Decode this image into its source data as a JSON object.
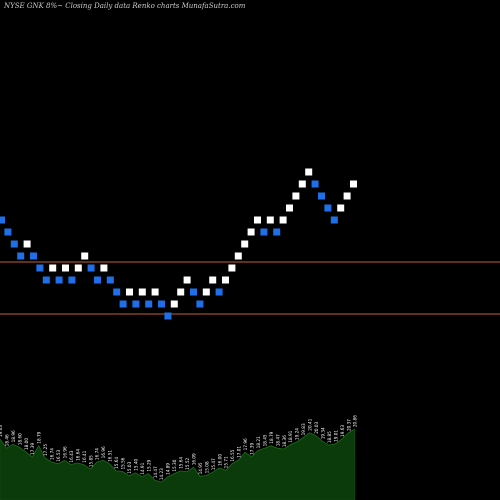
{
  "chart_data": {
    "type": "renko",
    "title": "NYSE GNK 8%~  Closing Daily data  Renko  charts MunafaSutra.com",
    "colors": {
      "background": "#000000",
      "up_brick": "#ffffff",
      "down_brick": "#1e6fe8",
      "reference_line": "#c0622a",
      "volume_fill": "#0b3a0b",
      "volume_line": "#ffffff"
    },
    "reference_lines": [
      16.9,
      14.3
    ],
    "brick_size": 0.6,
    "bricks": [
      {
        "close": 19.0,
        "dir": "down"
      },
      {
        "close": 18.4,
        "dir": "down"
      },
      {
        "close": 17.8,
        "dir": "down"
      },
      {
        "close": 17.2,
        "dir": "down"
      },
      {
        "close": 17.8,
        "dir": "up"
      },
      {
        "close": 17.2,
        "dir": "down"
      },
      {
        "close": 16.6,
        "dir": "down"
      },
      {
        "close": 16.0,
        "dir": "down"
      },
      {
        "close": 16.6,
        "dir": "up"
      },
      {
        "close": 16.0,
        "dir": "down"
      },
      {
        "close": 16.6,
        "dir": "up"
      },
      {
        "close": 16.0,
        "dir": "down"
      },
      {
        "close": 16.6,
        "dir": "up"
      },
      {
        "close": 17.2,
        "dir": "up"
      },
      {
        "close": 16.6,
        "dir": "down"
      },
      {
        "close": 16.0,
        "dir": "down"
      },
      {
        "close": 16.6,
        "dir": "up"
      },
      {
        "close": 16.0,
        "dir": "down"
      },
      {
        "close": 15.4,
        "dir": "down"
      },
      {
        "close": 14.8,
        "dir": "down"
      },
      {
        "close": 15.4,
        "dir": "up"
      },
      {
        "close": 14.8,
        "dir": "down"
      },
      {
        "close": 15.4,
        "dir": "up"
      },
      {
        "close": 14.8,
        "dir": "down"
      },
      {
        "close": 15.4,
        "dir": "up"
      },
      {
        "close": 14.8,
        "dir": "down"
      },
      {
        "close": 14.2,
        "dir": "down"
      },
      {
        "close": 14.8,
        "dir": "up"
      },
      {
        "close": 15.4,
        "dir": "up"
      },
      {
        "close": 16.0,
        "dir": "up"
      },
      {
        "close": 15.4,
        "dir": "down"
      },
      {
        "close": 14.8,
        "dir": "down"
      },
      {
        "close": 15.4,
        "dir": "up"
      },
      {
        "close": 16.0,
        "dir": "up"
      },
      {
        "close": 15.4,
        "dir": "down"
      },
      {
        "close": 16.0,
        "dir": "up"
      },
      {
        "close": 16.6,
        "dir": "up"
      },
      {
        "close": 17.2,
        "dir": "up"
      },
      {
        "close": 17.8,
        "dir": "up"
      },
      {
        "close": 18.4,
        "dir": "up"
      },
      {
        "close": 19.0,
        "dir": "up"
      },
      {
        "close": 18.4,
        "dir": "down"
      },
      {
        "close": 19.0,
        "dir": "up"
      },
      {
        "close": 18.4,
        "dir": "down"
      },
      {
        "close": 19.0,
        "dir": "up"
      },
      {
        "close": 19.6,
        "dir": "up"
      },
      {
        "close": 20.2,
        "dir": "up"
      },
      {
        "close": 20.8,
        "dir": "up"
      },
      {
        "close": 21.4,
        "dir": "up"
      },
      {
        "close": 20.8,
        "dir": "down"
      },
      {
        "close": 20.2,
        "dir": "down"
      },
      {
        "close": 19.6,
        "dir": "down"
      },
      {
        "close": 19.0,
        "dir": "down"
      },
      {
        "close": 19.6,
        "dir": "up"
      },
      {
        "close": 20.2,
        "dir": "up"
      },
      {
        "close": 20.8,
        "dir": "up"
      }
    ],
    "volume_labels": [
      "19.63",
      "18.46",
      "18.96",
      "18.60",
      "18.00",
      "17.39",
      "18.79",
      "17.25",
      "16.74",
      "16.53",
      "16.96",
      "16.43",
      "16.64",
      "16.41",
      "15.85",
      "16.74",
      "16.96",
      "16.51",
      "15.64",
      "15.56",
      "15.03",
      "15.40",
      "14.91",
      "15.29",
      "14.47",
      "14.23",
      "14.89",
      "15.30",
      "15.64",
      "15.52",
      "16.09",
      "14.95",
      "15.08",
      "15.47",
      "16.00",
      "15.71",
      "16.55",
      "17.01",
      "17.96",
      "17.39",
      "18.21",
      "18.45",
      "18.79",
      "18.47",
      "18.36",
      "18.91",
      "19.24",
      "19.83",
      "20.41",
      "20.03",
      "19.34",
      "18.85",
      "19.01",
      "19.63",
      "20.37",
      "20.86"
    ]
  }
}
